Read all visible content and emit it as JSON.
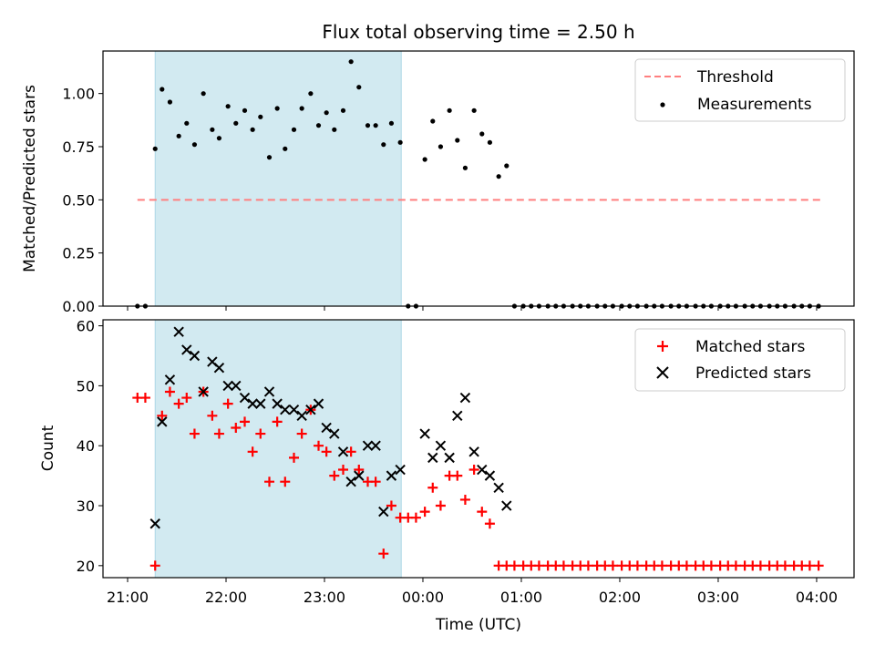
{
  "chart_data": [
    {
      "type": "scatter",
      "title": "Flux total observing time = 2.50 h",
      "ylabel": "Matched/Predicted stars",
      "xlabel": "",
      "x_unit": "hours since 21:00 UTC",
      "xlim": [
        -0.25,
        7.38
      ],
      "ylim": [
        0,
        1.2
      ],
      "yticks": [
        0.0,
        0.25,
        0.5,
        0.75,
        1.0
      ],
      "ytick_labels": [
        "0.00",
        "0.25",
        "0.50",
        "0.75",
        "1.00"
      ],
      "shaded_interval": [
        0.28,
        2.78
      ],
      "shade_color": "#add8e6",
      "legend_position": "upper right",
      "series": [
        {
          "name": "Threshold",
          "style": "dashed-line",
          "color": "#ff7f7f",
          "x": [
            0.1,
            7.05
          ],
          "y": [
            0.5,
            0.5
          ]
        },
        {
          "name": "Measurements",
          "style": "dot",
          "color": "#000000",
          "x": [
            0.1,
            0.18,
            0.28,
            0.35,
            0.43,
            0.52,
            0.6,
            0.68,
            0.77,
            0.86,
            0.93,
            1.02,
            1.1,
            1.19,
            1.27,
            1.35,
            1.44,
            1.52,
            1.6,
            1.69,
            1.77,
            1.86,
            1.94,
            2.02,
            2.1,
            2.19,
            2.27,
            2.35,
            2.44,
            2.52,
            2.6,
            2.68,
            2.77,
            2.85,
            2.93,
            3.02,
            3.1,
            3.18,
            3.27,
            3.35,
            3.43,
            3.52,
            3.6,
            3.68,
            3.77,
            3.85,
            3.93,
            4.02,
            4.1,
            4.18,
            4.27,
            4.35,
            4.43,
            4.52,
            4.6,
            4.68,
            4.77,
            4.85,
            4.93,
            5.02,
            5.1,
            5.18,
            5.27,
            5.35,
            5.43,
            5.52,
            5.6,
            5.68,
            5.77,
            5.85,
            5.93,
            6.02,
            6.1,
            6.18,
            6.27,
            6.35,
            6.43,
            6.52,
            6.6,
            6.68,
            6.77,
            6.85,
            6.93,
            7.02
          ],
          "y": [
            0.0,
            0.0,
            0.74,
            1.02,
            0.96,
            0.8,
            0.86,
            0.76,
            1.0,
            0.83,
            0.79,
            0.94,
            0.86,
            0.92,
            0.83,
            0.89,
            0.7,
            0.93,
            0.74,
            0.83,
            0.93,
            1.0,
            0.85,
            0.91,
            0.83,
            0.92,
            1.15,
            1.03,
            0.85,
            0.85,
            0.76,
            0.86,
            0.77,
            0.0,
            0.0,
            0.69,
            0.87,
            0.75,
            0.92,
            0.78,
            0.65,
            0.92,
            0.81,
            0.77,
            0.61,
            0.66,
            0.0,
            0.0,
            0.0,
            0.0,
            0.0,
            0.0,
            0.0,
            0.0,
            0.0,
            0.0,
            0.0,
            0.0,
            0.0,
            0.0,
            0.0,
            0.0,
            0.0,
            0.0,
            0.0,
            0.0,
            0.0,
            0.0,
            0.0,
            0.0,
            0.0,
            0.0,
            0.0,
            0.0,
            0.0,
            0.0,
            0.0,
            0.0,
            0.0,
            0.0,
            0.0,
            0.0,
            0.0,
            0.0
          ]
        }
      ]
    },
    {
      "type": "scatter",
      "title": "",
      "ylabel": "Count",
      "xlabel": "Time (UTC)",
      "x_unit": "hours since 21:00 UTC",
      "xlim": [
        -0.25,
        7.38
      ],
      "ylim": [
        18,
        61
      ],
      "yticks": [
        20,
        30,
        40,
        50,
        60
      ],
      "ytick_labels": [
        "20",
        "30",
        "40",
        "50",
        "60"
      ],
      "xticks": [
        0,
        1,
        2,
        3,
        4,
        5,
        6,
        7
      ],
      "xtick_labels": [
        "21:00",
        "22:00",
        "23:00",
        "00:00",
        "01:00",
        "02:00",
        "03:00",
        "04:00"
      ],
      "shaded_interval": [
        0.28,
        2.78
      ],
      "shade_color": "#add8e6",
      "legend_position": "upper right",
      "series": [
        {
          "name": "Matched stars",
          "marker": "plus",
          "color": "#ff0000",
          "x": [
            0.1,
            0.18,
            0.28,
            0.35,
            0.43,
            0.52,
            0.6,
            0.68,
            0.77,
            0.86,
            0.93,
            1.02,
            1.1,
            1.19,
            1.27,
            1.35,
            1.44,
            1.52,
            1.6,
            1.69,
            1.77,
            1.86,
            1.94,
            2.02,
            2.1,
            2.19,
            2.27,
            2.35,
            2.44,
            2.52,
            2.6,
            2.68,
            2.77,
            2.85,
            2.93,
            3.02,
            3.1,
            3.18,
            3.27,
            3.35,
            3.43,
            3.52,
            3.6,
            3.68,
            3.77,
            3.85,
            3.93,
            4.02,
            4.1,
            4.18,
            4.27,
            4.35,
            4.43,
            4.52,
            4.6,
            4.68,
            4.77,
            4.85,
            4.93,
            5.02,
            5.1,
            5.18,
            5.27,
            5.35,
            5.43,
            5.52,
            5.6,
            5.68,
            5.77,
            5.85,
            5.93,
            6.02,
            6.1,
            6.18,
            6.27,
            6.35,
            6.43,
            6.52,
            6.6,
            6.68,
            6.77,
            6.85,
            6.93,
            7.02
          ],
          "y": [
            48,
            48,
            20,
            45,
            49,
            47,
            48,
            42,
            49,
            45,
            42,
            47,
            43,
            44,
            39,
            42,
            34,
            44,
            34,
            38,
            42,
            46,
            40,
            39,
            35,
            36,
            39,
            36,
            34,
            34,
            22,
            30,
            28,
            28,
            28,
            29,
            33,
            30,
            35,
            35,
            31,
            36,
            29,
            27,
            20,
            20,
            20,
            20,
            20,
            20,
            20,
            20,
            20,
            20,
            20,
            20,
            20,
            20,
            20,
            20,
            20,
            20,
            20,
            20,
            20,
            20,
            20,
            20,
            20,
            20,
            20,
            20,
            20,
            20,
            20,
            20,
            20,
            20,
            20,
            20,
            20,
            20,
            20,
            20
          ]
        },
        {
          "name": "Predicted stars",
          "marker": "x",
          "color": "#000000",
          "x": [
            0.28,
            0.35,
            0.43,
            0.52,
            0.6,
            0.68,
            0.77,
            0.86,
            0.93,
            1.02,
            1.1,
            1.19,
            1.27,
            1.35,
            1.44,
            1.52,
            1.6,
            1.69,
            1.77,
            1.86,
            1.94,
            2.02,
            2.1,
            2.19,
            2.27,
            2.35,
            2.44,
            2.52,
            2.6,
            2.68,
            2.77,
            3.02,
            3.1,
            3.18,
            3.27,
            3.35,
            3.43,
            3.52,
            3.6,
            3.68,
            3.77,
            3.85
          ],
          "y": [
            27,
            44,
            51,
            59,
            56,
            55,
            49,
            54,
            53,
            50,
            50,
            48,
            47,
            47,
            49,
            47,
            46,
            46,
            45,
            46,
            47,
            43,
            42,
            39,
            34,
            35,
            40,
            40,
            29,
            35,
            36,
            42,
            38,
            40,
            38,
            45,
            48,
            39,
            36,
            35,
            33,
            30
          ]
        }
      ]
    }
  ]
}
